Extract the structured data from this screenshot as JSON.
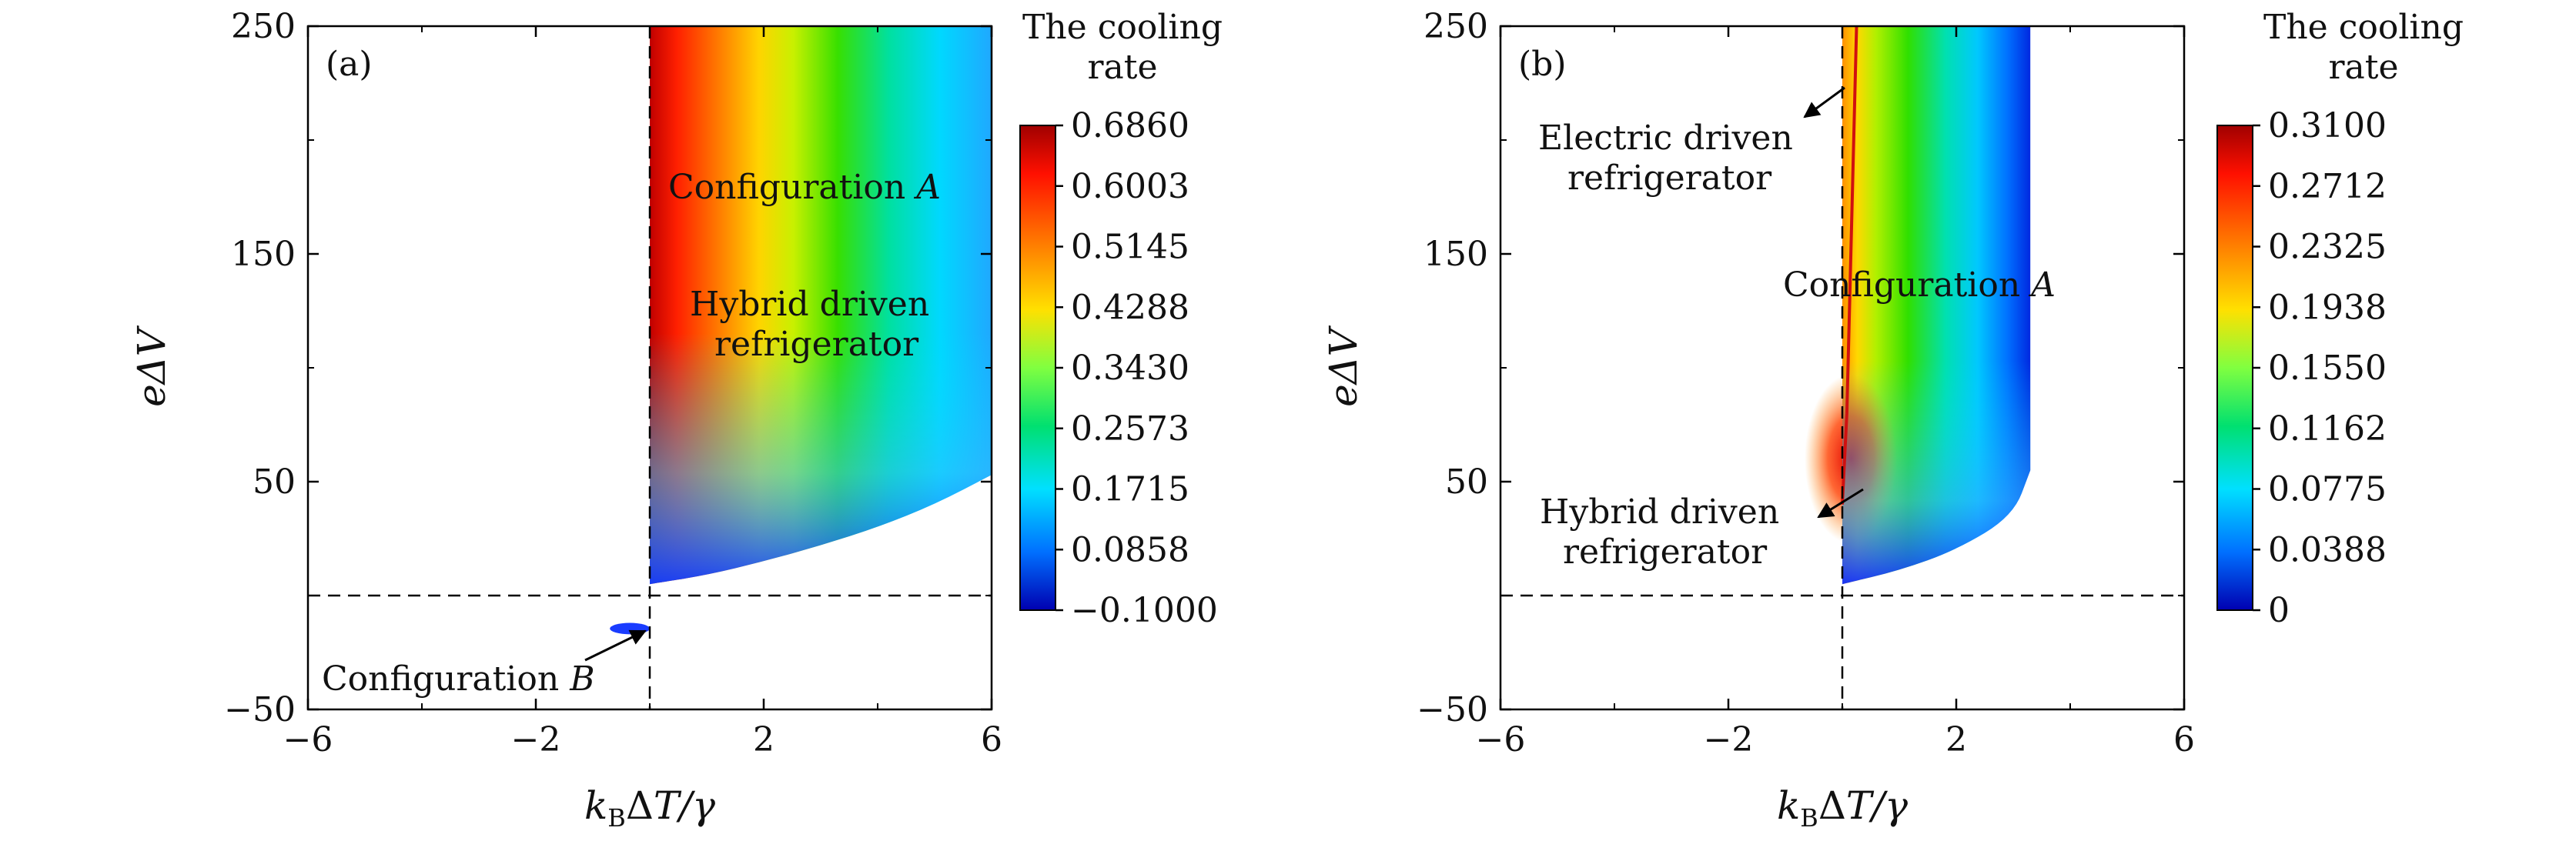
{
  "figure": {
    "panels": [
      {
        "id": "a",
        "tag": "(a)",
        "xlabel": "k_BΔT/γ",
        "ylabel": "eΔV",
        "xticks": [
          "−6",
          "−2",
          "2",
          "6"
        ],
        "yticks": [
          "250",
          "150",
          "50",
          "−50"
        ],
        "colorbar_title": [
          "The cooling",
          "rate"
        ],
        "colorbar_ticks": [
          "0.6860",
          "0.6003",
          "0.5145",
          "0.4288",
          "0.3430",
          "0.2573",
          "0.1715",
          "0.0858",
          "−0.1000"
        ],
        "annotations": {
          "config_a": "Configuration",
          "config_a_letter": "A",
          "hybrid_line1": "Hybrid driven",
          "hybrid_line2": "refrigerator",
          "config_b": "Configuration",
          "config_b_letter": "B"
        }
      },
      {
        "id": "b",
        "tag": "(b)",
        "xlabel": "k_BΔT/γ",
        "ylabel": "eΔV",
        "xticks": [
          "−6",
          "−2",
          "2",
          "6"
        ],
        "yticks": [
          "250",
          "150",
          "50",
          "−50"
        ],
        "colorbar_title": [
          "The cooling",
          "rate"
        ],
        "colorbar_ticks": [
          "0.3100",
          "0.2712",
          "0.2325",
          "0.1938",
          "0.1550",
          "0.1162",
          "0.0775",
          "0.0388",
          "0"
        ],
        "annotations": {
          "electric_line1": "Electric driven",
          "electric_line2": "refrigerator",
          "config_a": "Configuration",
          "config_a_letter": "A",
          "hybrid_line1": "Hybrid driven",
          "hybrid_line2": "refrigerator"
        }
      }
    ]
  },
  "chart_data": [
    {
      "type": "heatmap",
      "panel": "(a)",
      "title": "",
      "xlabel": "k_BΔT/γ",
      "ylabel": "eΔV",
      "xlim": [
        -6,
        6
      ],
      "ylim": [
        -50,
        250
      ],
      "xticks": [
        -6,
        -2,
        2,
        6
      ],
      "yticks": [
        -50,
        50,
        150,
        250
      ],
      "colorbar": {
        "title": "The cooling rate",
        "min": -0.1,
        "max": 0.686,
        "ticks": [
          0.686,
          0.6003,
          0.5145,
          0.4288,
          0.343,
          0.2573,
          0.1715,
          0.0858,
          -0.1
        ]
      },
      "colormap": "jet",
      "reference_lines": {
        "vertical_dashed_x": 0,
        "horizontal_dashed_y": 0
      },
      "regions": [
        {
          "name": "Configuration A",
          "x_range": [
            0,
            6
          ],
          "lower_boundary": [
            [
              0,
              5
            ],
            [
              1,
              9
            ],
            [
              2,
              15
            ],
            [
              3,
              22
            ],
            [
              4,
              30
            ],
            [
              5,
              40
            ],
            [
              6,
              53
            ]
          ],
          "upper_y": 250,
          "value_trend": "max 0.686 near x=0, decreasing to about 0.1 at x=6"
        },
        {
          "name": "Configuration B",
          "x": [
            -0.7,
            0
          ],
          "y": [
            -17,
            -12
          ],
          "value_approx": -0.1
        }
      ],
      "annotations": [
        "Configuration A",
        "Hybrid driven refrigerator",
        "Configuration B"
      ]
    },
    {
      "type": "heatmap",
      "panel": "(b)",
      "title": "",
      "xlabel": "k_BΔT/γ",
      "ylabel": "eΔV",
      "xlim": [
        -6,
        6
      ],
      "ylim": [
        -50,
        250
      ],
      "xticks": [
        -6,
        -2,
        2,
        6
      ],
      "yticks": [
        -50,
        50,
        150,
        250
      ],
      "colorbar": {
        "title": "The cooling rate",
        "min": 0,
        "max": 0.31,
        "ticks": [
          0.31,
          0.2712,
          0.2325,
          0.1938,
          0.155,
          0.1162,
          0.0775,
          0.0388,
          0
        ]
      },
      "colormap": "jet",
      "reference_lines": {
        "vertical_dashed_x": 0,
        "horizontal_dashed_y": 0
      },
      "regions": [
        {
          "name": "Configuration A",
          "x_range": [
            0,
            3.3
          ],
          "lower_boundary": [
            [
              0,
              5
            ],
            [
              1,
              11
            ],
            [
              2,
              20
            ],
            [
              3,
              35
            ],
            [
              3.3,
              55
            ]
          ],
          "upper_y": 250,
          "value_trend": "max 0.31 near x≈0.1, y≈55; decreasing to 0 at x≈3.3"
        }
      ],
      "boundary_curve": {
        "color": "red",
        "points": [
          [
            0,
            40
          ],
          [
            0.08,
            80
          ],
          [
            0.15,
            150
          ],
          [
            0.25,
            250
          ]
        ]
      },
      "annotations": [
        "Electric driven refrigerator",
        "Configuration A",
        "Hybrid driven refrigerator"
      ]
    }
  ]
}
